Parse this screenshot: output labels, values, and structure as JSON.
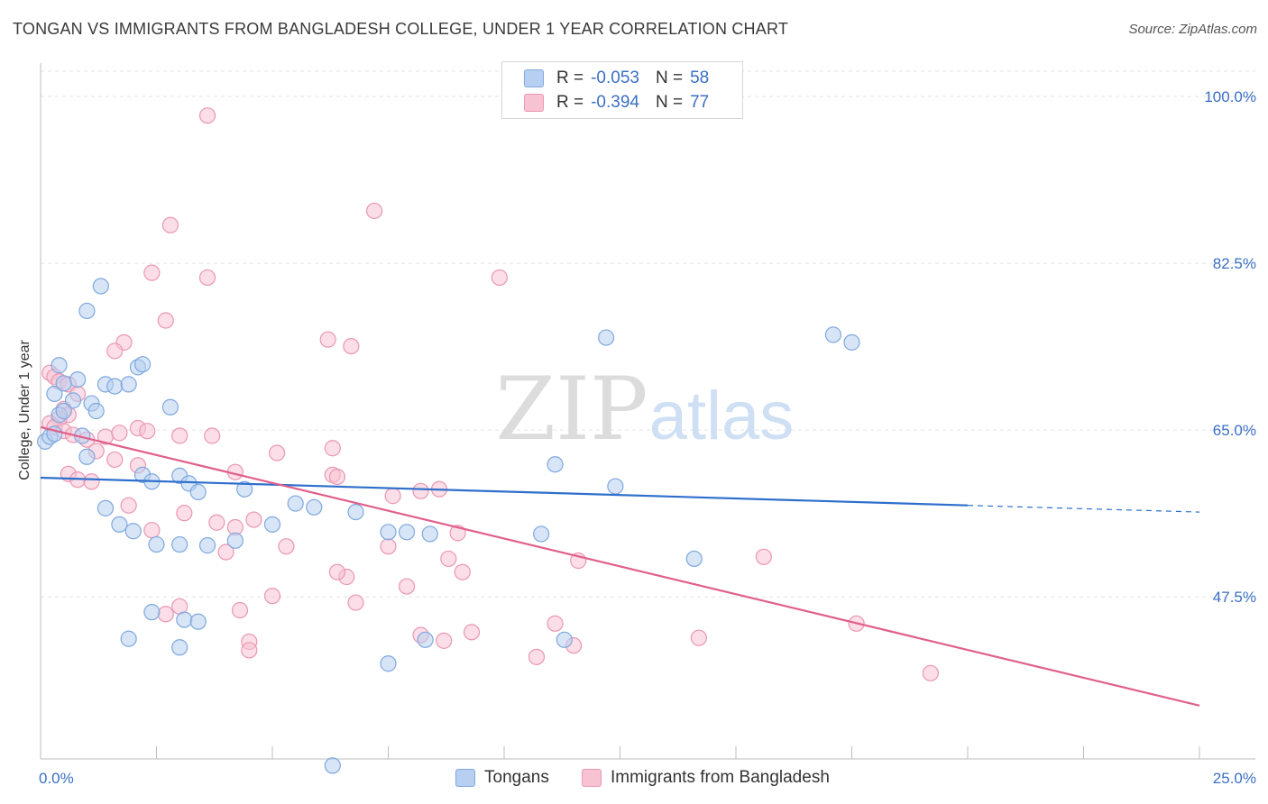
{
  "title": "TONGAN VS IMMIGRANTS FROM BANGLADESH COLLEGE, UNDER 1 YEAR CORRELATION CHART",
  "source": "Source: ZipAtlas.com",
  "watermark": {
    "zip": "ZIP",
    "atlas": "atlas"
  },
  "legend_top": {
    "rows": [
      {
        "r_label": "R =",
        "r_value": "-0.053",
        "n_label": "N =",
        "n_value": "58"
      },
      {
        "r_label": "R =",
        "r_value": "-0.394",
        "n_label": "N =",
        "n_value": "77"
      }
    ]
  },
  "legend_bottom": {
    "series1": "Tongans",
    "series2": "Immigrants from Bangladesh"
  },
  "colors": {
    "series1_fill": "#b7cff0",
    "series1_stroke": "#7fa8de",
    "series1_line": "#2e6fcc",
    "series2_fill": "#f7c3d3",
    "series2_stroke": "#ea97b2",
    "series2_line": "#e0608c",
    "tick_text": "#3a6fc4",
    "grid": "#e3e3e3"
  },
  "chart_data": {
    "type": "scatter",
    "xlabel": "",
    "ylabel": "College, Under 1 year",
    "xlim": [
      0,
      25
    ],
    "ylim": [
      30.5,
      103.5
    ],
    "x_tick_labels": [
      "0.0%",
      "25.0%"
    ],
    "y_ticks": [
      47.5,
      65.0,
      82.5,
      100.0
    ],
    "y_tick_labels": [
      "47.5%",
      "65.0%",
      "82.5%",
      "100.0%"
    ],
    "grid": true,
    "series": [
      {
        "name": "Tongans",
        "points": [
          [
            0.1,
            63.8
          ],
          [
            0.2,
            64.3
          ],
          [
            0.3,
            64.6
          ],
          [
            0.4,
            66.6
          ],
          [
            0.3,
            68.8
          ],
          [
            0.5,
            69.9
          ],
          [
            0.4,
            71.8
          ],
          [
            0.7,
            68.1
          ],
          [
            0.5,
            67.0
          ],
          [
            0.8,
            70.3
          ],
          [
            0.9,
            64.4
          ],
          [
            1.0,
            62.2
          ],
          [
            1.1,
            67.8
          ],
          [
            1.2,
            67.0
          ],
          [
            1.3,
            80.1
          ],
          [
            1.0,
            77.5
          ],
          [
            1.4,
            69.8
          ],
          [
            1.6,
            69.6
          ],
          [
            1.9,
            69.8
          ],
          [
            2.1,
            71.6
          ],
          [
            2.2,
            71.9
          ],
          [
            2.8,
            67.4
          ],
          [
            2.2,
            60.3
          ],
          [
            2.4,
            59.6
          ],
          [
            3.0,
            60.2
          ],
          [
            3.2,
            59.4
          ],
          [
            3.4,
            58.5
          ],
          [
            1.4,
            56.8
          ],
          [
            1.7,
            55.1
          ],
          [
            2.0,
            54.4
          ],
          [
            2.5,
            53.0
          ],
          [
            3.0,
            53.0
          ],
          [
            3.6,
            52.9
          ],
          [
            4.2,
            53.4
          ],
          [
            5.0,
            55.1
          ],
          [
            5.5,
            57.3
          ],
          [
            5.9,
            56.9
          ],
          [
            7.9,
            54.3
          ],
          [
            7.5,
            54.3
          ],
          [
            8.4,
            54.1
          ],
          [
            11.1,
            61.4
          ],
          [
            12.4,
            59.1
          ],
          [
            10.8,
            54.1
          ],
          [
            14.1,
            51.5
          ],
          [
            4.4,
            58.8
          ],
          [
            6.8,
            56.4
          ],
          [
            3.1,
            45.1
          ],
          [
            2.4,
            45.9
          ],
          [
            1.9,
            43.1
          ],
          [
            3.4,
            44.9
          ],
          [
            3.0,
            42.2
          ],
          [
            8.3,
            43.0
          ],
          [
            11.3,
            43.0
          ],
          [
            7.5,
            40.5
          ],
          [
            6.3,
            29.8
          ],
          [
            12.2,
            74.7
          ],
          [
            17.5,
            74.2
          ],
          [
            17.1,
            75.0
          ]
        ]
      },
      {
        "name": "Immigrants from Bangladesh",
        "points": [
          [
            3.6,
            98.0
          ],
          [
            7.2,
            88.0
          ],
          [
            2.8,
            86.5
          ],
          [
            2.4,
            81.5
          ],
          [
            3.6,
            81.0
          ],
          [
            9.9,
            81.0
          ],
          [
            2.7,
            76.5
          ],
          [
            1.8,
            74.2
          ],
          [
            1.6,
            73.3
          ],
          [
            6.2,
            74.5
          ],
          [
            6.7,
            73.8
          ],
          [
            0.2,
            71.0
          ],
          [
            0.3,
            70.6
          ],
          [
            0.4,
            70.1
          ],
          [
            0.6,
            69.8
          ],
          [
            0.8,
            68.8
          ],
          [
            0.5,
            67.2
          ],
          [
            0.6,
            66.6
          ],
          [
            0.4,
            66.2
          ],
          [
            0.2,
            65.7
          ],
          [
            0.3,
            65.3
          ],
          [
            0.5,
            64.9
          ],
          [
            0.7,
            64.5
          ],
          [
            1.0,
            64.0
          ],
          [
            1.4,
            64.3
          ],
          [
            1.7,
            64.7
          ],
          [
            2.1,
            65.2
          ],
          [
            2.3,
            64.9
          ],
          [
            3.0,
            64.4
          ],
          [
            3.7,
            64.4
          ],
          [
            1.2,
            62.8
          ],
          [
            1.6,
            61.9
          ],
          [
            2.1,
            61.3
          ],
          [
            0.6,
            60.4
          ],
          [
            0.8,
            59.8
          ],
          [
            1.1,
            59.6
          ],
          [
            4.2,
            60.6
          ],
          [
            5.1,
            62.6
          ],
          [
            6.3,
            63.1
          ],
          [
            1.9,
            57.1
          ],
          [
            2.4,
            54.5
          ],
          [
            3.1,
            56.3
          ],
          [
            3.8,
            55.3
          ],
          [
            4.2,
            54.8
          ],
          [
            4.6,
            55.6
          ],
          [
            6.3,
            60.3
          ],
          [
            6.4,
            60.1
          ],
          [
            7.6,
            58.1
          ],
          [
            8.6,
            58.8
          ],
          [
            9.0,
            54.2
          ],
          [
            8.2,
            58.6
          ],
          [
            5.3,
            52.8
          ],
          [
            4.0,
            52.2
          ],
          [
            6.6,
            49.6
          ],
          [
            7.5,
            52.8
          ],
          [
            8.8,
            51.5
          ],
          [
            9.1,
            50.1
          ],
          [
            11.6,
            51.3
          ],
          [
            5.0,
            47.6
          ],
          [
            6.4,
            50.1
          ],
          [
            7.9,
            48.6
          ],
          [
            4.3,
            46.1
          ],
          [
            3.0,
            46.5
          ],
          [
            2.7,
            45.7
          ],
          [
            11.1,
            44.7
          ],
          [
            8.7,
            42.9
          ],
          [
            10.7,
            41.2
          ],
          [
            11.5,
            42.4
          ],
          [
            15.6,
            51.7
          ],
          [
            14.2,
            43.2
          ],
          [
            17.6,
            44.7
          ],
          [
            9.3,
            43.8
          ],
          [
            8.2,
            43.5
          ],
          [
            4.5,
            42.8
          ],
          [
            4.5,
            41.9
          ],
          [
            6.8,
            46.9
          ],
          [
            19.2,
            39.5
          ]
        ]
      }
    ],
    "trend_lines": [
      {
        "series": "Tongans",
        "x": [
          0,
          20,
          25
        ],
        "y": [
          60.0,
          57.1,
          56.4
        ],
        "dashed_from_x": 20
      },
      {
        "series": "Immigrants from Bangladesh",
        "x": [
          0,
          25
        ],
        "y": [
          65.3,
          36.1
        ]
      }
    ]
  }
}
